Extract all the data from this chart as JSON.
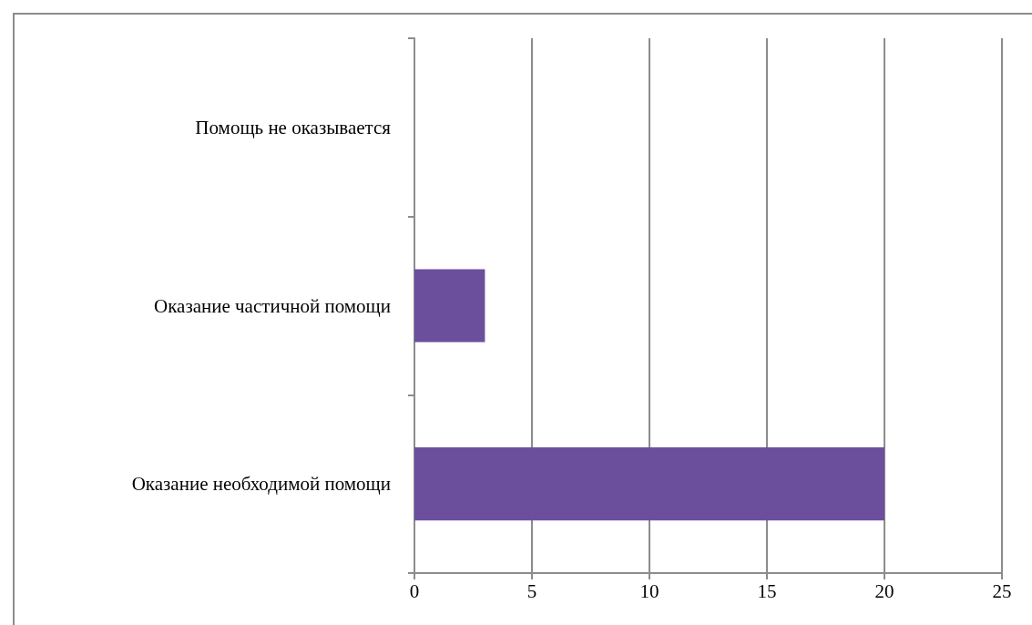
{
  "chart_data": {
    "type": "bar",
    "orientation": "horizontal",
    "categories": [
      "Помощь не оказывается",
      "Оказание частичной помощи",
      "Оказание необходимой помощи"
    ],
    "values": [
      0,
      3,
      20
    ],
    "color": "#6c4f9c",
    "xlim": [
      0,
      25
    ],
    "xticks": [
      0,
      5,
      10,
      15,
      20,
      25
    ],
    "grid": "x"
  }
}
